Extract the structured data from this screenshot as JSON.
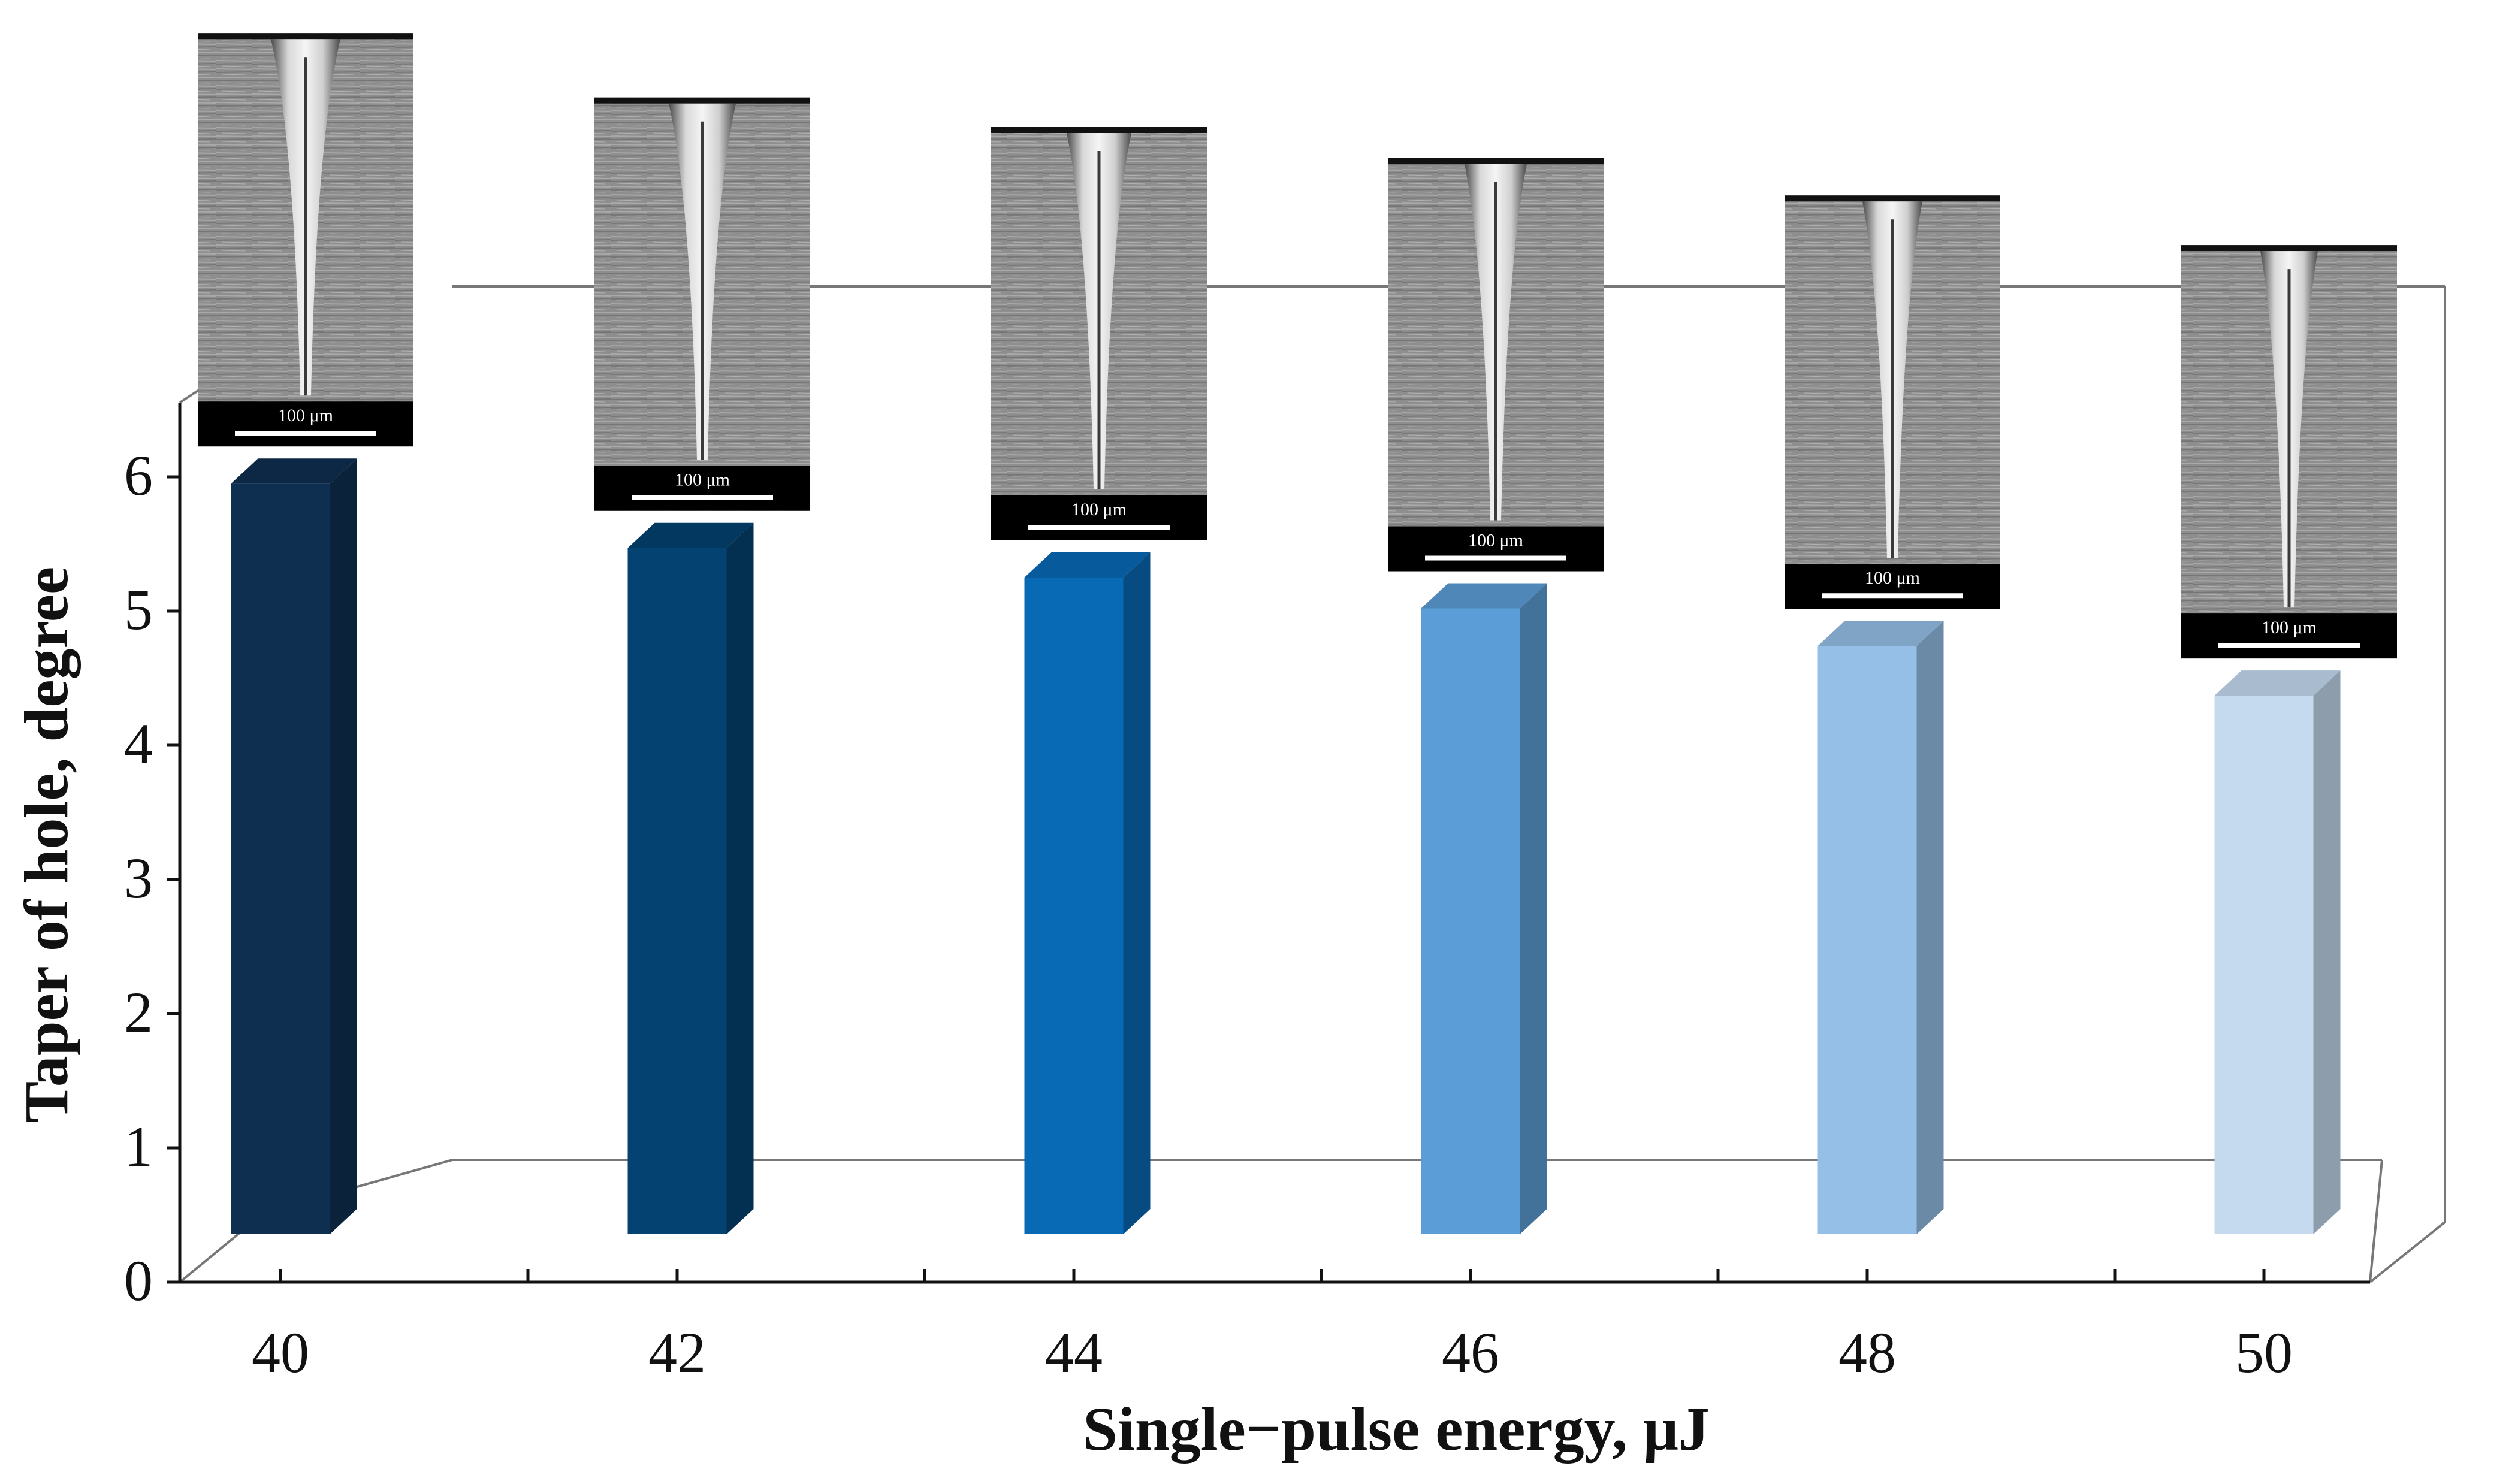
{
  "chart_data": {
    "type": "bar",
    "style": "3d",
    "categories": [
      "40",
      "42",
      "44",
      "46",
      "48",
      "50"
    ],
    "values": [
      5.95,
      5.47,
      5.25,
      5.02,
      4.74,
      4.37
    ],
    "ylim": [
      0,
      6.5
    ],
    "yticks": [
      "0",
      "1",
      "2",
      "3",
      "4",
      "5",
      "6"
    ],
    "xlabel": "Single−pulse energy, μJ",
    "ylabel": "Taper of hole, degree",
    "bar_colors": [
      "#0e2f50",
      "#044271",
      "#0869b4",
      "#5b9dd6",
      "#95bfe6",
      "#c5daef"
    ],
    "insets": {
      "type": "SEM cross-section micrographs",
      "scale_bar_label": "100 μm"
    }
  }
}
